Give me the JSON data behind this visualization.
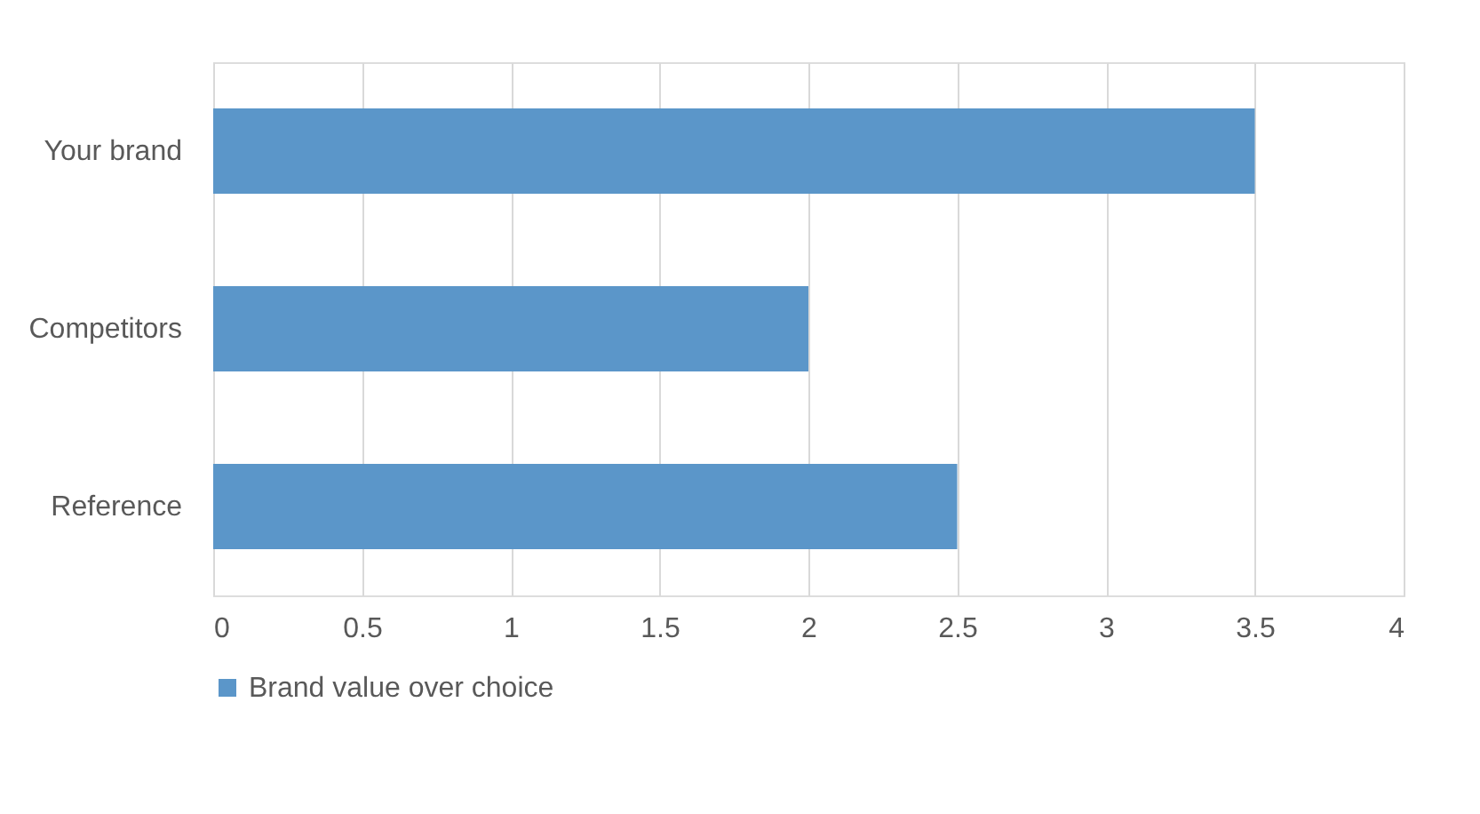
{
  "chart_data": {
    "type": "bar",
    "orientation": "horizontal",
    "categories": [
      "Your brand",
      "Competitors",
      "Reference"
    ],
    "series": [
      {
        "name": "Brand value over choice",
        "color": "#5b96c9",
        "values": [
          3.5,
          2,
          2.5
        ]
      }
    ],
    "xlim": [
      0,
      4
    ],
    "xticks": [
      0,
      0.5,
      1,
      1.5,
      2,
      2.5,
      3,
      3.5,
      4
    ],
    "grid": "x",
    "legend": "bottom"
  }
}
